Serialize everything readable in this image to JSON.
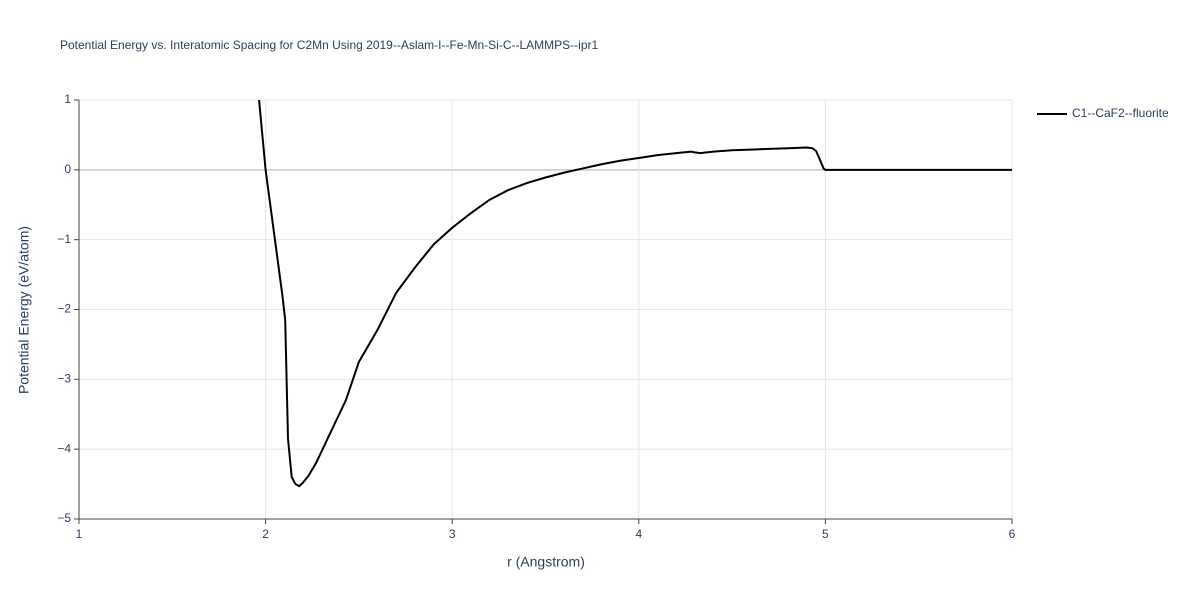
{
  "chart_data": {
    "type": "line",
    "title": "Potential Energy vs. Interatomic Spacing for C2Mn Using 2019--Aslam-I--Fe-Mn-Si-C--LAMMPS--ipr1",
    "x_label": "r (Angstrom)",
    "y_label": "Potential Energy (eV/atom)",
    "xlim": [
      1,
      6
    ],
    "ylim": [
      -5,
      1
    ],
    "xticks": [
      1,
      2,
      3,
      4,
      5,
      6
    ],
    "yticks": [
      {
        "value": -5,
        "label": "−5"
      },
      {
        "value": -4,
        "label": "−4"
      },
      {
        "value": -3,
        "label": "−3"
      },
      {
        "value": -2,
        "label": "−2"
      },
      {
        "value": -1,
        "label": "−1"
      },
      0,
      1
    ],
    "grid": true,
    "legend_position": "right",
    "series": [
      {
        "name": "C1--CaF2--fluorite",
        "color": "#000000",
        "x": [
          1.965,
          2.0,
          2.03,
          2.06,
          2.09,
          2.105,
          2.12,
          2.14,
          2.16,
          2.18,
          2.2,
          2.23,
          2.27,
          2.35,
          2.43,
          2.5,
          2.6,
          2.7,
          2.8,
          2.9,
          3.0,
          3.1,
          3.2,
          3.3,
          3.4,
          3.5,
          3.6,
          3.7,
          3.8,
          3.9,
          4.0,
          4.1,
          4.2,
          4.28,
          4.3,
          4.33,
          4.4,
          4.5,
          4.6,
          4.7,
          4.8,
          4.9,
          4.93,
          4.95,
          4.97,
          4.99,
          5.0,
          6.0
        ],
        "values": [
          1.0,
          0.0,
          -0.6,
          -1.2,
          -1.8,
          -2.15,
          -3.85,
          -4.4,
          -4.5,
          -4.53,
          -4.48,
          -4.38,
          -4.2,
          -3.75,
          -3.3,
          -2.75,
          -2.29,
          -1.76,
          -1.4,
          -1.07,
          -0.83,
          -0.62,
          -0.43,
          -0.29,
          -0.19,
          -0.11,
          -0.04,
          0.02,
          0.08,
          0.13,
          0.17,
          0.21,
          0.24,
          0.26,
          0.25,
          0.24,
          0.26,
          0.28,
          0.29,
          0.3,
          0.31,
          0.32,
          0.31,
          0.27,
          0.15,
          0.02,
          0.0,
          0.0
        ]
      }
    ]
  }
}
